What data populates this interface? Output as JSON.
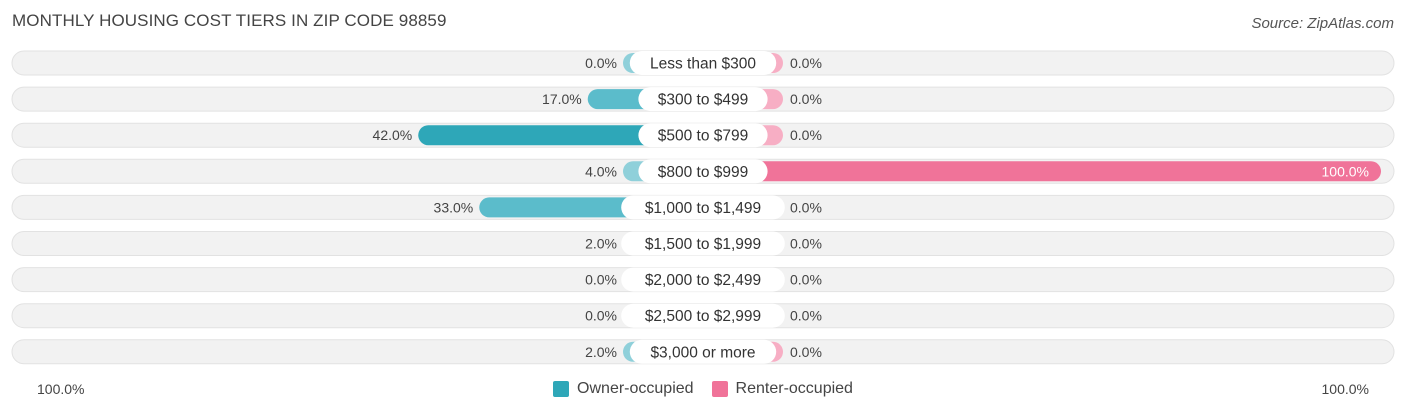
{
  "title": "MONTHLY HOUSING COST TIERS IN ZIP CODE 98859",
  "source": "Source: ZipAtlas.com",
  "axis": {
    "left_label": "100.0%",
    "right_label": "100.0%"
  },
  "legend": {
    "owner_label": "Owner-occupied",
    "renter_label": "Renter-occupied"
  },
  "colors": {
    "owner": "#5bbccb",
    "owner_dark": "#2ea7b8",
    "owner_light": "#8fd0da",
    "renter": "#f07399",
    "renter_light": "#f7aec4",
    "row_bg": "#efefef",
    "row_border": "#e2e2e2"
  },
  "chart_data": {
    "type": "bar",
    "orientation": "diverging-horizontal",
    "categories": [
      "Less than $300",
      "$300 to $499",
      "$500 to $799",
      "$800 to $999",
      "$1,000 to $1,499",
      "$1,500 to $1,999",
      "$2,000 to $2,499",
      "$2,500 to $2,999",
      "$3,000 or more"
    ],
    "series": [
      {
        "name": "Owner-occupied",
        "values": [
          0.0,
          17.0,
          42.0,
          4.0,
          33.0,
          2.0,
          0.0,
          0.0,
          2.0
        ],
        "labels": [
          "0.0%",
          "17.0%",
          "42.0%",
          "4.0%",
          "33.0%",
          "2.0%",
          "0.0%",
          "0.0%",
          "2.0%"
        ]
      },
      {
        "name": "Renter-occupied",
        "values": [
          0.0,
          0.0,
          0.0,
          100.0,
          0.0,
          0.0,
          0.0,
          0.0,
          0.0
        ],
        "labels": [
          "0.0%",
          "0.0%",
          "0.0%",
          "100.0%",
          "0.0%",
          "0.0%",
          "0.0%",
          "0.0%",
          "0.0%"
        ]
      }
    ],
    "xlim": [
      -100,
      100
    ],
    "unit": "%",
    "legend_position": "bottom-center"
  }
}
